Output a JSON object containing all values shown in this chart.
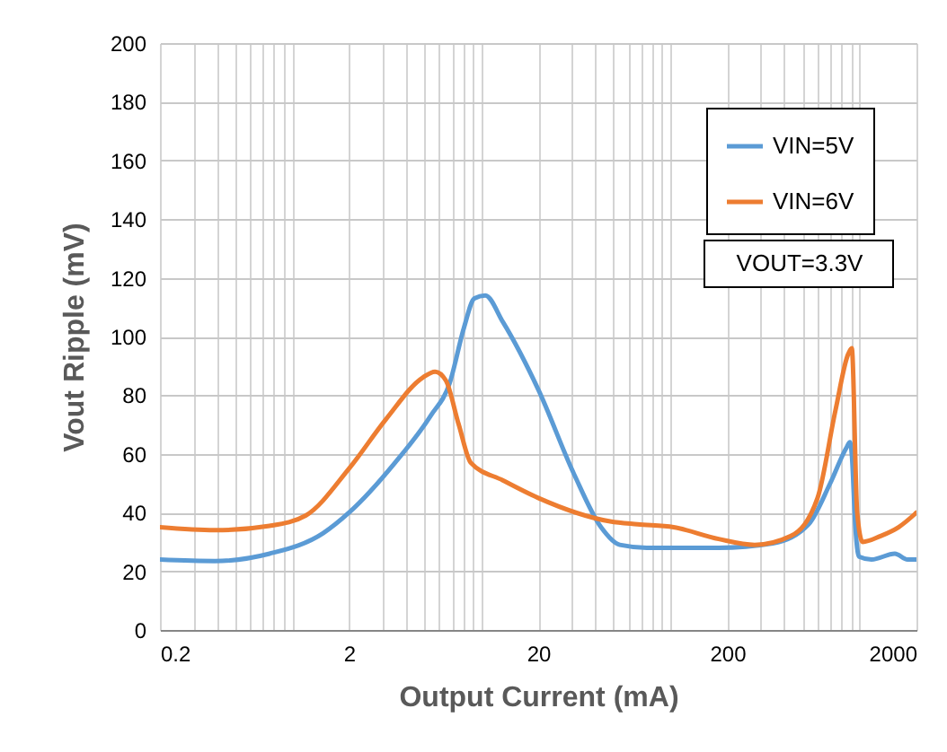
{
  "chart_data": {
    "type": "line",
    "xlabel": "Output Current (mA)",
    "ylabel": "Vout Ripple (mV)",
    "log": "x",
    "grid": true,
    "legend": "top right",
    "marker": "none",
    "line_style": "solid",
    "xlim": [
      0.2,
      2000
    ],
    "xticks": [
      0.2,
      2,
      20,
      200,
      2000
    ],
    "ylim": [
      0,
      200
    ],
    "yticks": [
      0,
      20,
      40,
      60,
      80,
      100,
      120,
      140,
      160,
      180,
      200
    ],
    "annotations": [
      "VOUT=3.3V"
    ],
    "series": [
      {
        "name": "VIN=5V",
        "color": "#5b9bd5",
        "x": [
          0.2,
          0.39,
          0.76,
          1.46,
          2.0,
          3.5,
          5.4,
          6.8,
          8.1,
          9.2,
          10.5,
          13,
          20,
          31,
          43,
          54,
          75,
          180,
          348,
          538,
          700,
          851,
          890,
          910,
          951,
          993,
          1157,
          1538,
          1794,
          2000
        ],
        "values": [
          24,
          23.5,
          26,
          33,
          40,
          57,
          73,
          84,
          103,
          113,
          114,
          105,
          82,
          53,
          35,
          29,
          28,
          28,
          29.5,
          36,
          50,
          62,
          64,
          60,
          35,
          25,
          24,
          26,
          24,
          24
        ]
      },
      {
        "name": "VIN=6V",
        "color": "#ed7d31",
        "x": [
          0.2,
          0.39,
          0.76,
          1.18,
          2.0,
          3.15,
          4.9,
          5.7,
          6.5,
          7.6,
          8.8,
          13,
          20,
          48,
          67,
          104,
          180,
          279,
          433,
          600,
          747,
          871,
          910,
          972,
          1038,
          1291,
          1607,
          2000
        ],
        "values": [
          35,
          34,
          35.5,
          39,
          55,
          72,
          86,
          88,
          85,
          70,
          57,
          51,
          45,
          37,
          36,
          35,
          31,
          29,
          32,
          45,
          75,
          94,
          96,
          40,
          30,
          32,
          35,
          40
        ]
      }
    ]
  }
}
